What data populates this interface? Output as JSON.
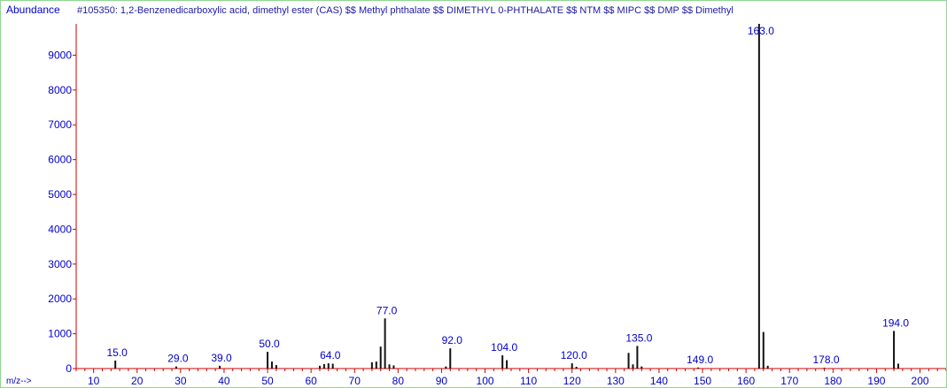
{
  "chart_data": {
    "type": "bar",
    "title": "#105350: 1,2-Benzenedicarboxylic acid, dimethyl ester (CAS) $$ Methyl phthalate $$ DIMETHYL 0-PHTHALATE $$ NTM $$ MIPC $$ DMP $$ Dimethyl",
    "ylabel": "Abundance",
    "xlabel": "m/z-->",
    "xlim": [
      6,
      206
    ],
    "ylim": [
      0,
      9900
    ],
    "xticks": [
      10,
      20,
      30,
      40,
      50,
      60,
      70,
      80,
      90,
      100,
      110,
      120,
      130,
      140,
      150,
      160,
      170,
      180,
      190,
      200
    ],
    "yticks": [
      0,
      1000,
      2000,
      3000,
      4000,
      5000,
      6000,
      7000,
      8000,
      9000
    ],
    "peaks": [
      {
        "mz": 15,
        "abundance": 230
      },
      {
        "mz": 29,
        "abundance": 60
      },
      {
        "mz": 39,
        "abundance": 80
      },
      {
        "mz": 50,
        "abundance": 480
      },
      {
        "mz": 51,
        "abundance": 200
      },
      {
        "mz": 52,
        "abundance": 100
      },
      {
        "mz": 62,
        "abundance": 80
      },
      {
        "mz": 63,
        "abundance": 130
      },
      {
        "mz": 64,
        "abundance": 150
      },
      {
        "mz": 65,
        "abundance": 140
      },
      {
        "mz": 74,
        "abundance": 180
      },
      {
        "mz": 75,
        "abundance": 200
      },
      {
        "mz": 76,
        "abundance": 630
      },
      {
        "mz": 77,
        "abundance": 1440
      },
      {
        "mz": 78,
        "abundance": 120
      },
      {
        "mz": 79,
        "abundance": 90
      },
      {
        "mz": 91,
        "abundance": 60
      },
      {
        "mz": 92,
        "abundance": 580
      },
      {
        "mz": 104,
        "abundance": 380
      },
      {
        "mz": 105,
        "abundance": 240
      },
      {
        "mz": 120,
        "abundance": 150
      },
      {
        "mz": 121,
        "abundance": 50
      },
      {
        "mz": 133,
        "abundance": 450
      },
      {
        "mz": 134,
        "abundance": 120
      },
      {
        "mz": 135,
        "abundance": 650
      },
      {
        "mz": 136,
        "abundance": 60
      },
      {
        "mz": 149,
        "abundance": 30
      },
      {
        "mz": 163,
        "abundance": 9999
      },
      {
        "mz": 164,
        "abundance": 1050
      },
      {
        "mz": 165,
        "abundance": 80
      },
      {
        "mz": 178,
        "abundance": 20
      },
      {
        "mz": 194,
        "abundance": 1080
      },
      {
        "mz": 195,
        "abundance": 140
      }
    ],
    "labeled_peaks": [
      {
        "mz": 15,
        "label": "15.0"
      },
      {
        "mz": 29,
        "label": "29.0"
      },
      {
        "mz": 39,
        "label": "39.0"
      },
      {
        "mz": 50,
        "label": "50.0"
      },
      {
        "mz": 64,
        "label": "64.0"
      },
      {
        "mz": 77,
        "label": "77.0"
      },
      {
        "mz": 92,
        "label": "92.0"
      },
      {
        "mz": 104,
        "label": "104.0"
      },
      {
        "mz": 120,
        "label": "120.0"
      },
      {
        "mz": 135,
        "label": "135.0"
      },
      {
        "mz": 149,
        "label": "149.0"
      },
      {
        "mz": 163,
        "label": "163.0"
      },
      {
        "mz": 178,
        "label": "178.0"
      },
      {
        "mz": 194,
        "label": "194.0"
      }
    ],
    "colors": {
      "peak": "#111111",
      "axis": "#cc0000",
      "text": "#0000cc",
      "frame": "#8fd68f"
    }
  }
}
